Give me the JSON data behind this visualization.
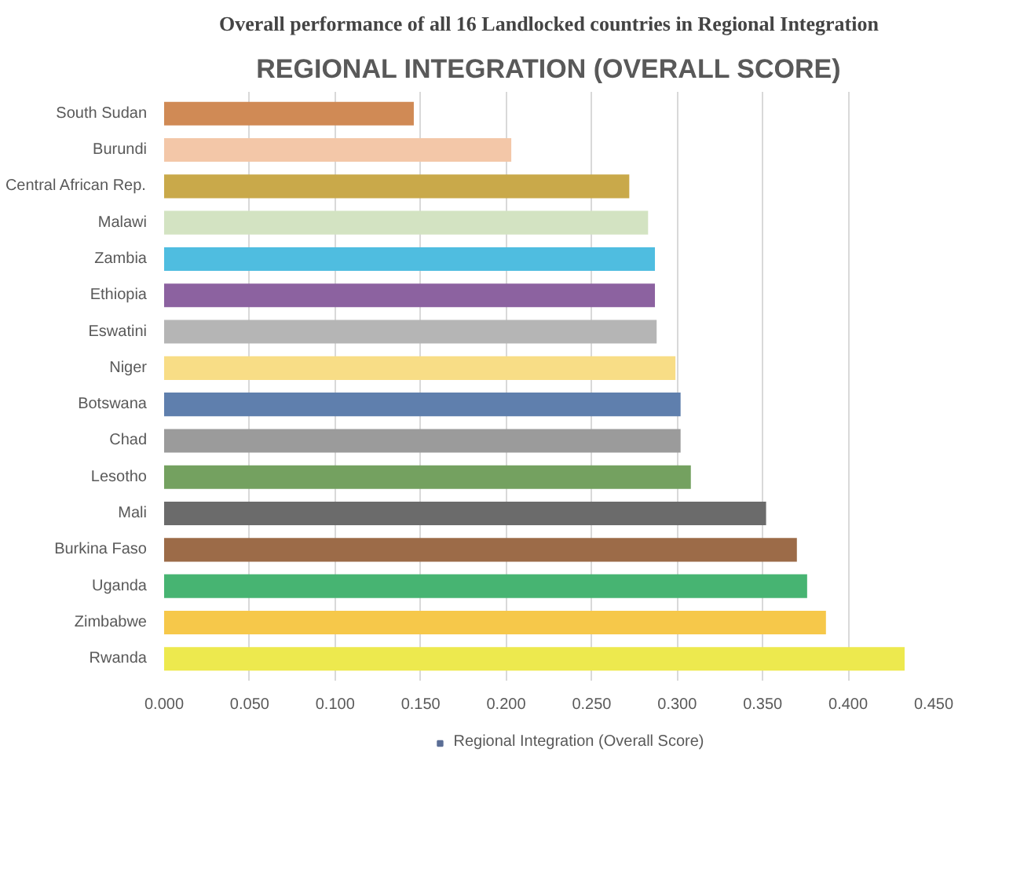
{
  "chart_data": {
    "type": "bar",
    "orientation": "horizontal",
    "title": "Overall performance of all 16 Landlocked countries in Regional Integration",
    "subtitle": "REGIONAL INTEGRATION (OVERALL SCORE)",
    "categories": [
      "South Sudan",
      "Burundi",
      "Central African Rep.",
      "Malawi",
      "Zambia",
      "Ethiopia",
      "Eswatini",
      "Niger",
      "Botswana",
      "Chad",
      "Lesotho",
      "Mali",
      "Burkina Faso",
      "Uganda",
      "Zimbabwe",
      "Rwanda"
    ],
    "series": [
      {
        "name": "Regional Integration (Overall Score)",
        "color": "#5b6e96",
        "colors": [
          "#d08a55",
          "#f3c7a8",
          "#c9a94a",
          "#d3e3c2",
          "#4fbde0",
          "#8c62a0",
          "#b5b5b5",
          "#f8dd86",
          "#5f7fad",
          "#9b9b9b",
          "#74a160",
          "#6b6b6b",
          "#9c6b48",
          "#47b472",
          "#f6c84a",
          "#ede94e"
        ],
        "values": [
          0.146,
          0.203,
          0.272,
          0.283,
          0.287,
          0.287,
          0.288,
          0.299,
          0.302,
          0.302,
          0.308,
          0.352,
          0.37,
          0.376,
          0.387,
          0.433
        ]
      }
    ],
    "xlim": [
      0,
      0.45
    ],
    "xticks": [
      {
        "value": 0,
        "label": "0.000"
      },
      {
        "value": 0.05,
        "label": "0.050"
      },
      {
        "value": 0.1,
        "label": "0.100"
      },
      {
        "value": 0.15,
        "label": "0.150"
      },
      {
        "value": 0.2,
        "label": "0.200"
      },
      {
        "value": 0.25,
        "label": "0.250"
      },
      {
        "value": 0.3,
        "label": "0.300"
      },
      {
        "value": 0.35,
        "label": "0.350"
      },
      {
        "value": 0.4,
        "label": "0.400"
      },
      {
        "value": 0.45,
        "label": "0.450"
      }
    ],
    "grid": "x",
    "legend": "bottom"
  }
}
